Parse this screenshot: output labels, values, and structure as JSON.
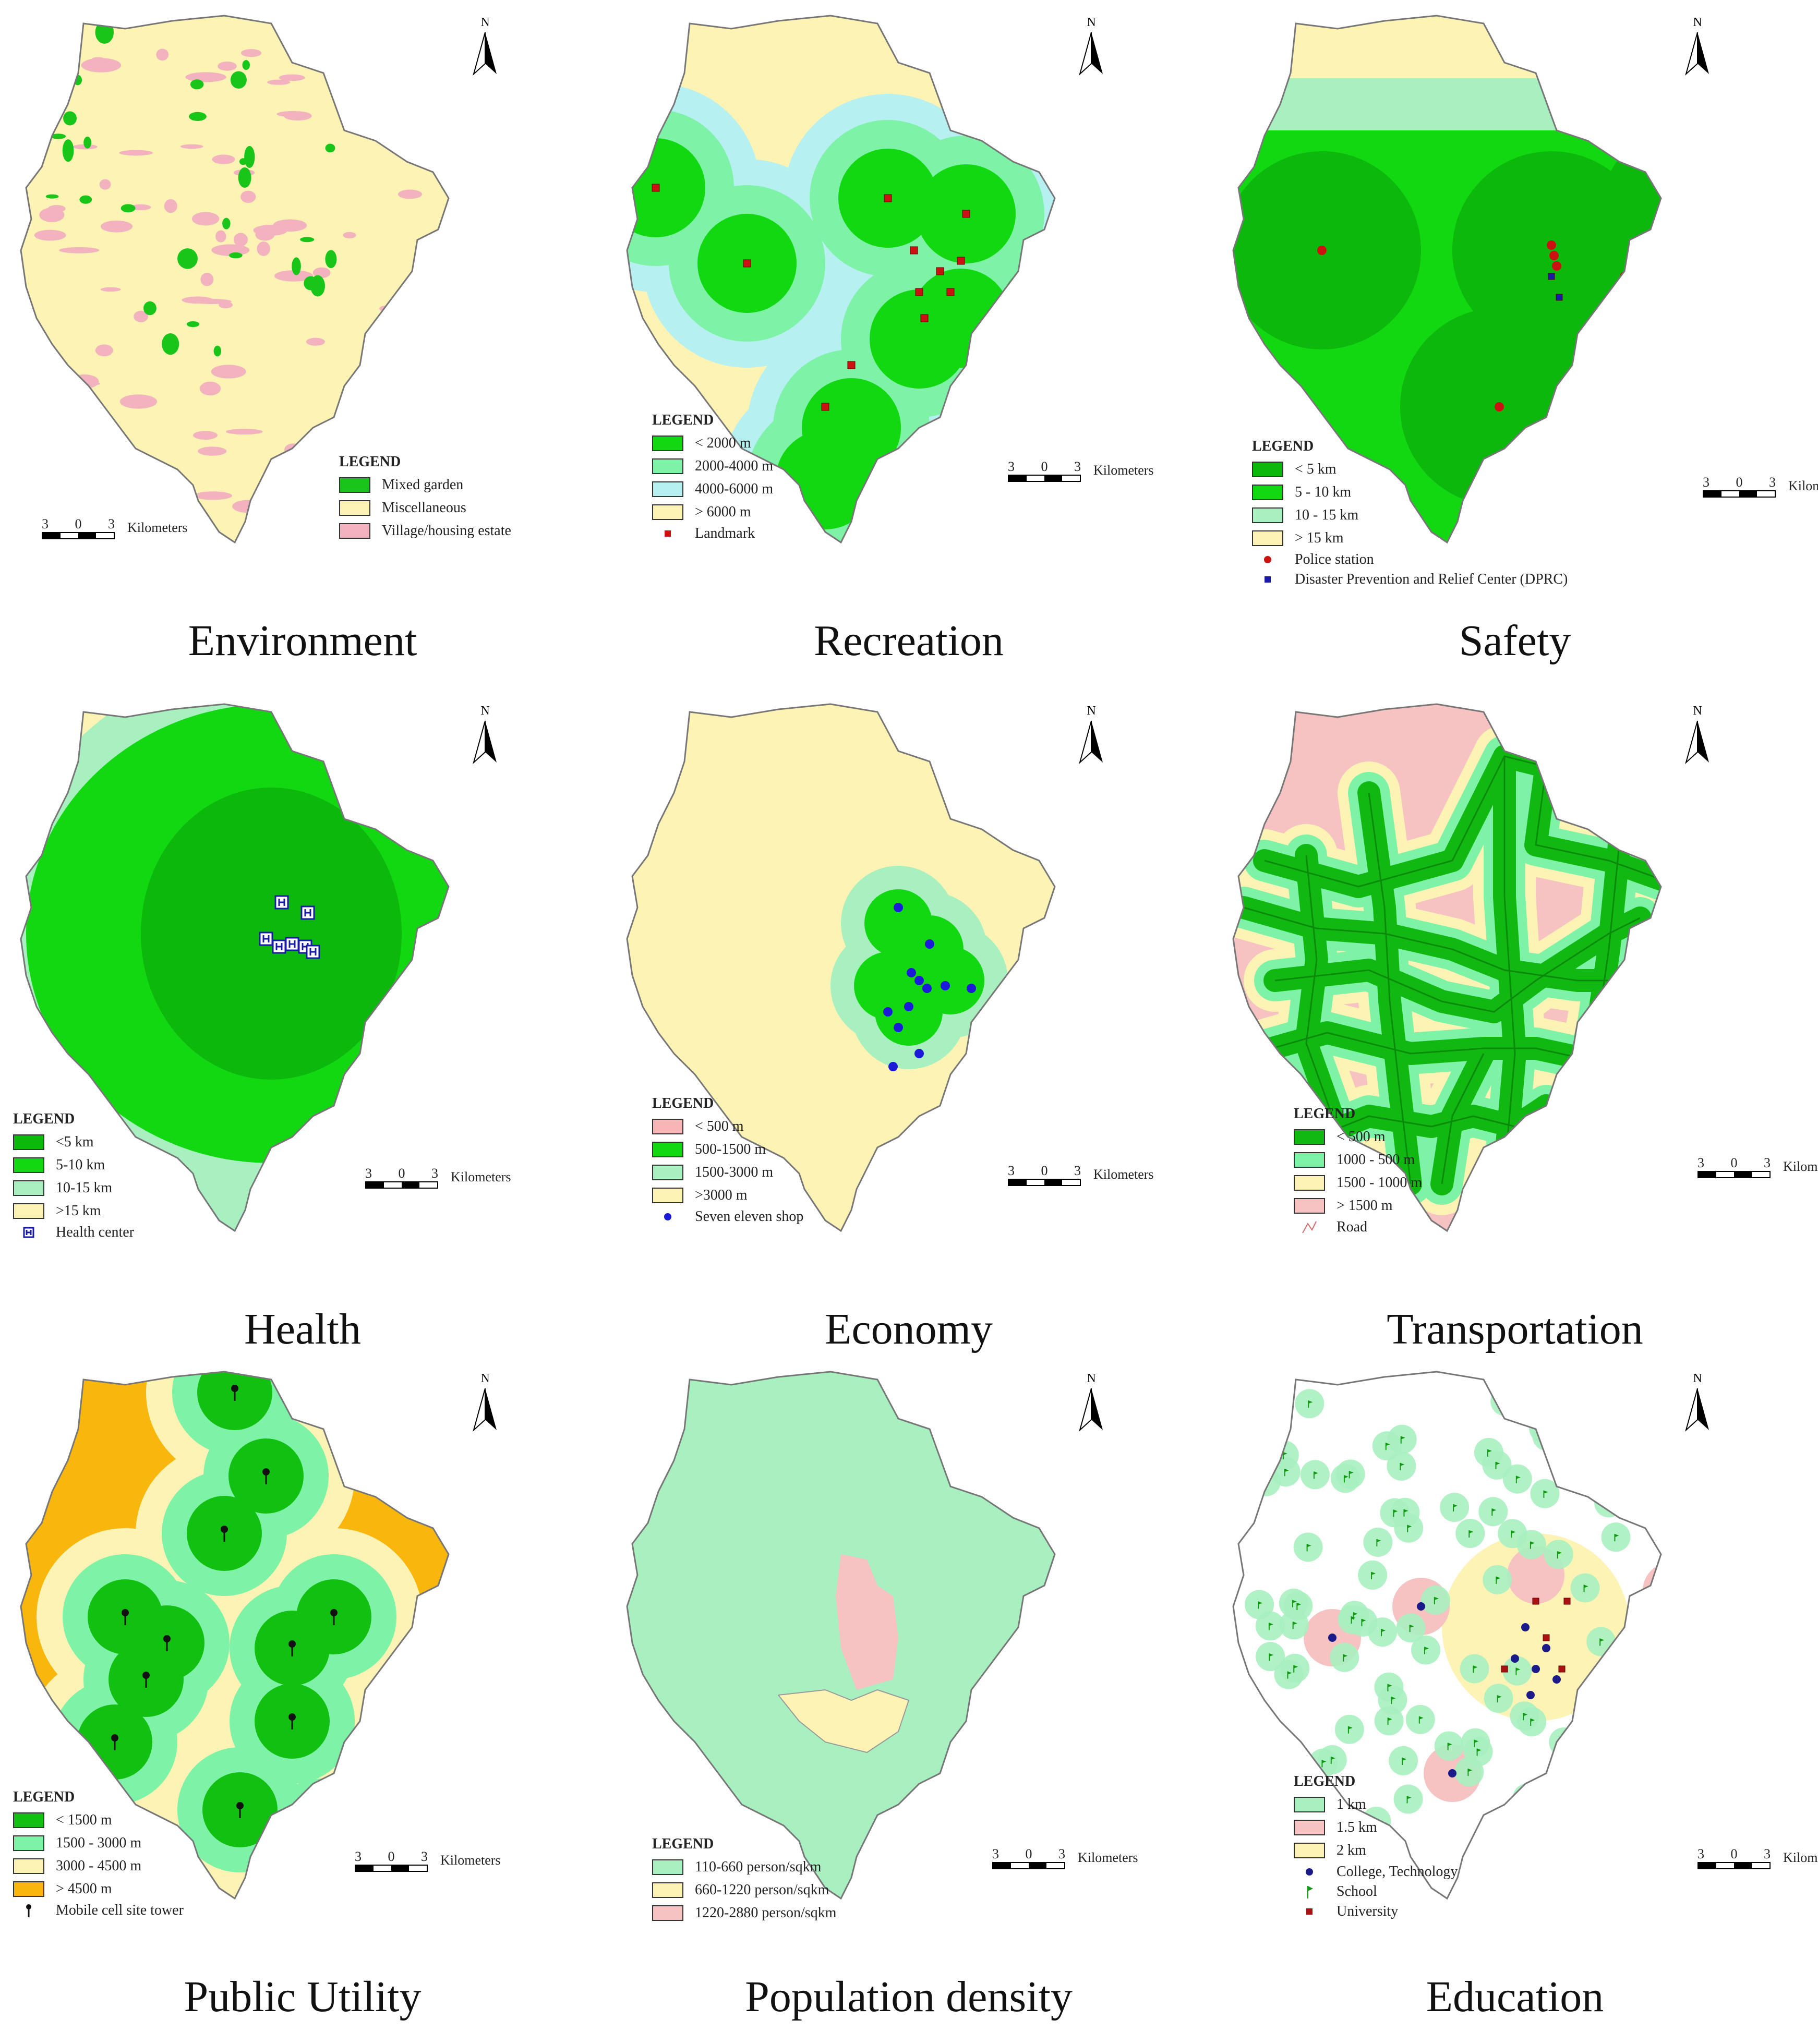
{
  "north_label": "N",
  "scale": {
    "labels": [
      "3",
      "0",
      "3"
    ],
    "unit": "Kilometers"
  },
  "legend_title": "LEGEND",
  "panels": [
    {
      "id": "environment",
      "caption": "Environment",
      "base_color": "#fdf3b5",
      "legend": [
        {
          "label": "Mixed garden",
          "color": "#19c519"
        },
        {
          "label": "Miscellaneous",
          "color": "#fdf3b5"
        },
        {
          "label": "Village/housing estate",
          "color": "#f2b3bf"
        }
      ],
      "symbols": []
    },
    {
      "id": "recreation",
      "caption": "Recreation",
      "base_color": "#fdf3b5",
      "legend": [
        {
          "label": "< 2000 m",
          "color": "#12d812"
        },
        {
          "label": "2000-4000 m",
          "color": "#7ef2a6"
        },
        {
          "label": "4000-6000 m",
          "color": "#b6f0f0"
        },
        {
          "label": "> 6000 m",
          "color": "#fdf3b5"
        }
      ],
      "symbols": [
        {
          "label": "Landmark",
          "icon": "red-square",
          "color": "#cc1111"
        }
      ]
    },
    {
      "id": "safety",
      "caption": "Safety",
      "base_color": "#12d812",
      "legend": [
        {
          "label": "< 5 km",
          "color": "#0cb80c"
        },
        {
          "label": "5 - 10 km",
          "color": "#12d812"
        },
        {
          "label": "10 - 15 km",
          "color": "#a8f0c0"
        },
        {
          "label": "> 15 km",
          "color": "#fdf3b5"
        }
      ],
      "symbols": [
        {
          "label": "Police station",
          "icon": "red-dot",
          "color": "#cc1111"
        },
        {
          "label": "Disaster Prevention and Relief Center (DPRC)",
          "icon": "blue-square",
          "color": "#1a1aa8"
        }
      ]
    },
    {
      "id": "health",
      "caption": "Health",
      "base_color": "#fdf3b5",
      "legend": [
        {
          "label": "<5 km",
          "color": "#0cb80c"
        },
        {
          "label": "5-10 km",
          "color": "#12d812"
        },
        {
          "label": "10-15 km",
          "color": "#a8f0c0"
        },
        {
          "label": ">15 km",
          "color": "#fdf3b5"
        }
      ],
      "symbols": [
        {
          "label": "Health center",
          "icon": "hospital-icon",
          "color": "#1a1aa8"
        }
      ]
    },
    {
      "id": "economy",
      "caption": "Economy",
      "base_color": "#fdf3b5",
      "legend": [
        {
          "label": "< 500 m",
          "color": "#f7b5b5"
        },
        {
          "label": "500-1500 m",
          "color": "#12d812"
        },
        {
          "label": "1500-3000 m",
          "color": "#a8f0c0"
        },
        {
          "label": ">3000 m",
          "color": "#fdf3b5"
        }
      ],
      "symbols": [
        {
          "label": "Seven eleven shop",
          "icon": "blue-dot",
          "color": "#1a1ad8"
        }
      ]
    },
    {
      "id": "transportation",
      "caption": "Transportation",
      "base_color": "#f7c2c2",
      "legend": [
        {
          "label": "< 500 m",
          "color": "#12b812"
        },
        {
          "label": "1000 - 500 m",
          "color": "#7ef2a6"
        },
        {
          "label": "1500 - 1000 m",
          "color": "#fdf3b5"
        },
        {
          "label": "> 1500 m",
          "color": "#f7c2c2"
        }
      ],
      "symbols": [
        {
          "label": "Road",
          "icon": "road-line",
          "color": "#d46a6a"
        }
      ]
    },
    {
      "id": "public-utility",
      "caption": "Public Utility",
      "base_color": "#f9b60c",
      "legend": [
        {
          "label": "< 1500 m",
          "color": "#12c012"
        },
        {
          "label": "1500 - 3000 m",
          "color": "#7ef2a6"
        },
        {
          "label": "3000 - 4500 m",
          "color": "#fdf3b5"
        },
        {
          "label": "> 4500 m",
          "color": "#f9b60c"
        }
      ],
      "symbols": [
        {
          "label": "Mobile cell site tower",
          "icon": "tower-icon",
          "color": "#111111"
        }
      ]
    },
    {
      "id": "population-density",
      "caption": "Population density",
      "base_color": "#a8f0c0",
      "legend": [
        {
          "label": "110-660 person/sqkm",
          "color": "#a8f0c0"
        },
        {
          "label": "660-1220 person/sqkm",
          "color": "#fdf3b5"
        },
        {
          "label": "1220-2880 person/sqkm",
          "color": "#f7c2c2"
        }
      ],
      "symbols": []
    },
    {
      "id": "education",
      "caption": "Education",
      "base_color": "#ffffff",
      "legend": [
        {
          "label": "1 km",
          "color": "#a8f0c0"
        },
        {
          "label": "1.5 km",
          "color": "#f7c2c2"
        },
        {
          "label": "2 km",
          "color": "#fdf3b5"
        }
      ],
      "symbols": [
        {
          "label": "College, Technology",
          "icon": "navy-dot",
          "color": "#1a1a88"
        },
        {
          "label": "School",
          "icon": "flag-icon",
          "color": "#119911"
        },
        {
          "label": "University",
          "icon": "red-square",
          "color": "#aa1111"
        }
      ]
    }
  ]
}
